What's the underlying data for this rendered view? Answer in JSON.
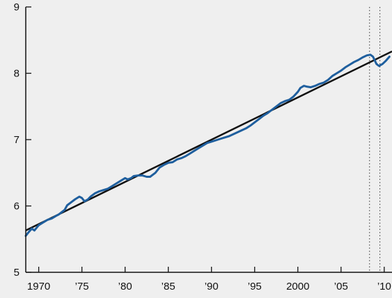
{
  "chart_data": {
    "type": "line",
    "title": "",
    "xlabel": "",
    "ylabel": "",
    "xlim": [
      1968.5,
      2010.9
    ],
    "ylim": [
      5,
      9
    ],
    "y_ticks": [
      5,
      6,
      7,
      8,
      9
    ],
    "x_ticks": [
      {
        "x": 1970,
        "label": "1970"
      },
      {
        "x": 1975,
        "label": "’75"
      },
      {
        "x": 1980,
        "label": "’80"
      },
      {
        "x": 1985,
        "label": "’85"
      },
      {
        "x": 1990,
        "label": "’90"
      },
      {
        "x": 1995,
        "label": "’95"
      },
      {
        "x": 2000,
        "label": "2000"
      },
      {
        "x": 2005,
        "label": "’05"
      },
      {
        "x": 2010,
        "label": "’10"
      }
    ],
    "grid": false,
    "vertical_markers": [
      2008.3,
      2009.5
    ],
    "series": [
      {
        "color": "#1f5f9e",
        "points": [
          [
            1968.5,
            5.55
          ],
          [
            1968.8,
            5.6
          ],
          [
            1969.2,
            5.66
          ],
          [
            1969.5,
            5.63
          ],
          [
            1970.0,
            5.71
          ],
          [
            1970.5,
            5.75
          ],
          [
            1971.0,
            5.79
          ],
          [
            1971.5,
            5.81
          ],
          [
            1972.0,
            5.85
          ],
          [
            1972.3,
            5.87
          ],
          [
            1972.6,
            5.9
          ],
          [
            1973.0,
            5.94
          ],
          [
            1973.3,
            6.01
          ],
          [
            1973.8,
            6.06
          ],
          [
            1974.2,
            6.1
          ],
          [
            1974.7,
            6.14
          ],
          [
            1975.0,
            6.12
          ],
          [
            1975.3,
            6.07
          ],
          [
            1975.7,
            6.1
          ],
          [
            1976.0,
            6.14
          ],
          [
            1976.5,
            6.19
          ],
          [
            1977.0,
            6.22
          ],
          [
            1977.5,
            6.24
          ],
          [
            1978.0,
            6.26
          ],
          [
            1978.5,
            6.3
          ],
          [
            1979.0,
            6.34
          ],
          [
            1979.5,
            6.38
          ],
          [
            1980.0,
            6.42
          ],
          [
            1980.3,
            6.4
          ],
          [
            1980.7,
            6.42
          ],
          [
            1981.0,
            6.45
          ],
          [
            1981.5,
            6.46
          ],
          [
            1982.0,
            6.46
          ],
          [
            1982.5,
            6.44
          ],
          [
            1982.9,
            6.44
          ],
          [
            1983.5,
            6.5
          ],
          [
            1984.0,
            6.58
          ],
          [
            1984.5,
            6.62
          ],
          [
            1985.0,
            6.65
          ],
          [
            1985.5,
            6.66
          ],
          [
            1986.0,
            6.7
          ],
          [
            1986.5,
            6.72
          ],
          [
            1987.0,
            6.75
          ],
          [
            1987.5,
            6.79
          ],
          [
            1988.0,
            6.83
          ],
          [
            1988.5,
            6.87
          ],
          [
            1989.0,
            6.91
          ],
          [
            1989.5,
            6.95
          ],
          [
            1990.0,
            6.97
          ],
          [
            1990.5,
            6.99
          ],
          [
            1991.0,
            7.01
          ],
          [
            1991.5,
            7.03
          ],
          [
            1992.0,
            7.05
          ],
          [
            1992.5,
            7.08
          ],
          [
            1993.0,
            7.11
          ],
          [
            1993.5,
            7.14
          ],
          [
            1994.0,
            7.17
          ],
          [
            1994.5,
            7.21
          ],
          [
            1995.0,
            7.26
          ],
          [
            1995.5,
            7.31
          ],
          [
            1996.0,
            7.36
          ],
          [
            1996.5,
            7.4
          ],
          [
            1997.0,
            7.45
          ],
          [
            1997.5,
            7.5
          ],
          [
            1998.0,
            7.55
          ],
          [
            1998.5,
            7.58
          ],
          [
            1999.0,
            7.6
          ],
          [
            1999.5,
            7.65
          ],
          [
            2000.0,
            7.72
          ],
          [
            2000.3,
            7.78
          ],
          [
            2000.7,
            7.81
          ],
          [
            2001.0,
            7.8
          ],
          [
            2001.5,
            7.79
          ],
          [
            2002.0,
            7.81
          ],
          [
            2002.5,
            7.84
          ],
          [
            2003.0,
            7.86
          ],
          [
            2003.5,
            7.9
          ],
          [
            2004.0,
            7.96
          ],
          [
            2004.5,
            8.0
          ],
          [
            2005.0,
            8.04
          ],
          [
            2005.5,
            8.09
          ],
          [
            2006.0,
            8.13
          ],
          [
            2006.5,
            8.17
          ],
          [
            2007.0,
            8.2
          ],
          [
            2007.5,
            8.24
          ],
          [
            2008.0,
            8.27
          ],
          [
            2008.4,
            8.28
          ],
          [
            2008.7,
            8.25
          ],
          [
            2009.1,
            8.14
          ],
          [
            2009.4,
            8.11
          ],
          [
            2009.8,
            8.14
          ],
          [
            2010.2,
            8.19
          ],
          [
            2010.6,
            8.25
          ]
        ]
      },
      {
        "color": "#111111",
        "points": [
          [
            1968.5,
            5.63
          ],
          [
            2010.9,
            8.33
          ]
        ]
      }
    ]
  }
}
